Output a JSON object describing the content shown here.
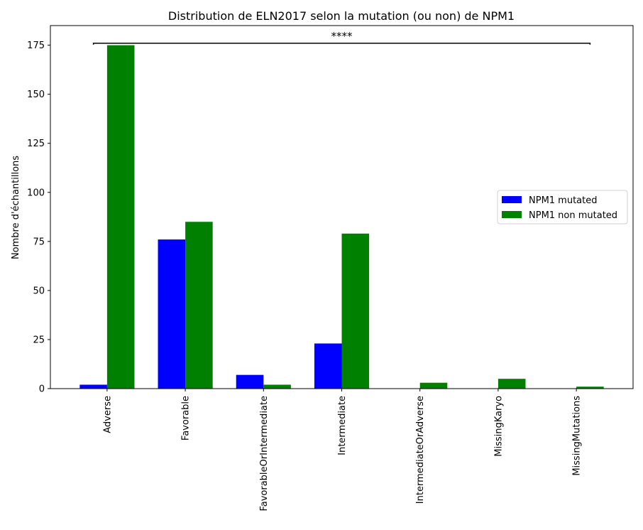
{
  "chart_data": {
    "type": "bar",
    "title": "Distribution de ELN2017 selon la mutation (ou non) de NPM1",
    "xlabel": "",
    "ylabel": "Nombre d'échantillons",
    "ylim": [
      0,
      185
    ],
    "yticks": [
      0,
      25,
      50,
      75,
      100,
      125,
      150,
      175
    ],
    "categories": [
      "Adverse",
      "Favorable",
      "FavorableOrIntermediate",
      "Intermediate",
      "IntermediateOrAdverse",
      "MissingKaryo",
      "MissingMutations"
    ],
    "series": [
      {
        "name": "NPM1 mutated",
        "color": "#0000ff",
        "values": [
          2,
          76,
          7,
          23,
          0,
          0,
          0
        ]
      },
      {
        "name": "NPM1 non mutated",
        "color": "#008000",
        "values": [
          175,
          85,
          2,
          79,
          3,
          5,
          1
        ]
      }
    ],
    "annotation": {
      "text": "****",
      "y": 176,
      "from_category": 0,
      "to_category": 6
    },
    "legend_position": "center-right",
    "grid": false
  }
}
